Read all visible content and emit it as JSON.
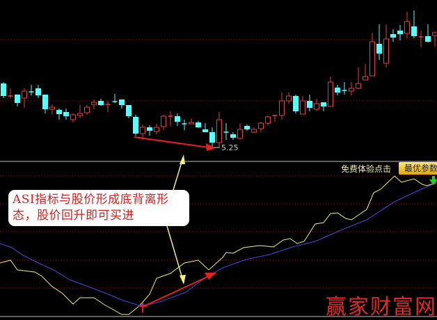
{
  "chart_data": [
    {
      "type": "candlestick",
      "title": "",
      "colors": {
        "up": "#e04040",
        "down": "#54ffff",
        "grid": "#8a1a1a"
      },
      "grid": true,
      "low_label": "5.25",
      "candles": [
        [
          6.17,
          5.99,
          6.19,
          5.96
        ],
        [
          5.99,
          5.99,
          6.1,
          5.96
        ],
        [
          6.01,
          5.89,
          6.01,
          5.84
        ],
        [
          5.96,
          6.06,
          6.1,
          5.82
        ],
        [
          6.05,
          6.04,
          6.15,
          6.0
        ],
        [
          6.1,
          6.0,
          6.15,
          5.96
        ],
        [
          6.01,
          5.8,
          6.01,
          5.74
        ],
        [
          5.8,
          5.83,
          5.87,
          5.72
        ],
        [
          5.79,
          5.73,
          5.81,
          5.65
        ],
        [
          5.76,
          5.7,
          5.81,
          5.65
        ],
        [
          5.65,
          5.72,
          5.74,
          5.61
        ],
        [
          5.71,
          5.74,
          5.86,
          5.67
        ],
        [
          5.75,
          5.83,
          5.86,
          5.72
        ],
        [
          5.87,
          5.9,
          5.94,
          5.8
        ],
        [
          5.92,
          5.86,
          5.95,
          5.85
        ],
        [
          5.87,
          5.87,
          5.92,
          5.76
        ],
        [
          5.91,
          5.9,
          6.02,
          5.89
        ],
        [
          5.94,
          5.86,
          5.94,
          5.81
        ],
        [
          5.86,
          5.7,
          5.86,
          5.67
        ],
        [
          5.69,
          5.45,
          5.72,
          5.42
        ],
        [
          5.45,
          5.54,
          5.58,
          5.36
        ],
        [
          5.54,
          5.49,
          5.57,
          5.42
        ],
        [
          5.48,
          5.54,
          5.59,
          5.44
        ],
        [
          5.55,
          5.7,
          5.72,
          5.5
        ],
        [
          5.7,
          5.7,
          5.77,
          5.55
        ],
        [
          5.7,
          5.62,
          5.74,
          5.56
        ],
        [
          5.59,
          5.58,
          5.65,
          5.5
        ],
        [
          5.59,
          5.61,
          5.67,
          5.59
        ],
        [
          5.61,
          5.54,
          5.63,
          5.53
        ],
        [
          5.51,
          5.47,
          5.6,
          5.47
        ],
        [
          5.47,
          5.32,
          5.54,
          5.25
        ],
        [
          5.32,
          5.65,
          5.76,
          5.25
        ],
        [
          5.47,
          5.46,
          5.6,
          5.36
        ],
        [
          5.44,
          5.39,
          5.47,
          5.36
        ],
        [
          5.38,
          5.51,
          5.6,
          5.36
        ],
        [
          5.56,
          5.51,
          5.58,
          5.49
        ],
        [
          5.47,
          5.51,
          5.54,
          5.46
        ],
        [
          5.52,
          5.6,
          5.62,
          5.47
        ],
        [
          5.6,
          5.69,
          5.71,
          5.57
        ],
        [
          5.71,
          5.71,
          5.72,
          5.62
        ],
        [
          5.71,
          5.92,
          6.04,
          5.65
        ],
        [
          5.92,
          5.99,
          6.04,
          5.88
        ],
        [
          5.99,
          5.77,
          6.01,
          5.74
        ],
        [
          5.73,
          5.92,
          5.99,
          5.73
        ],
        [
          5.92,
          5.82,
          6.01,
          5.77
        ],
        [
          5.8,
          5.88,
          5.95,
          5.77
        ],
        [
          5.9,
          5.84,
          5.9,
          5.77
        ],
        [
          5.84,
          6.19,
          6.27,
          5.84
        ],
        [
          6.11,
          6.04,
          6.15,
          6.0
        ],
        [
          6.07,
          6.06,
          6.19,
          6.01
        ],
        [
          6.06,
          6.1,
          6.19,
          6.0
        ],
        [
          6.1,
          6.17,
          6.4,
          6.09
        ],
        [
          6.22,
          6.27,
          6.45,
          6.22
        ],
        [
          6.28,
          6.77,
          6.9,
          6.28
        ],
        [
          6.74,
          6.6,
          7.02,
          6.51
        ],
        [
          6.46,
          6.81,
          7.02,
          6.4
        ],
        [
          6.88,
          6.83,
          6.95,
          6.77
        ],
        [
          6.93,
          6.88,
          7.01,
          6.79
        ],
        [
          6.89,
          7.06,
          7.2,
          6.82
        ],
        [
          6.99,
          6.85,
          7.22,
          6.82
        ],
        [
          6.84,
          6.84,
          6.93,
          6.69
        ],
        [
          6.85,
          6.77,
          7.02,
          6.76
        ],
        [
          6.86,
          6.9,
          6.92,
          6.7
        ]
      ]
    },
    {
      "type": "line",
      "title": "",
      "grid": true,
      "series": [
        {
          "color": "#f0f080",
          "points": [
            [
              -0.5,
              77
            ],
            [
              1,
              81
            ],
            [
              2,
              67
            ],
            [
              4.5,
              64
            ],
            [
              5.5,
              58
            ],
            [
              7,
              43
            ],
            [
              8.5,
              33
            ],
            [
              10,
              18
            ],
            [
              11,
              27
            ],
            [
              13,
              27
            ],
            [
              14.5,
              17
            ],
            [
              17,
              3
            ],
            [
              18,
              3
            ],
            [
              19.5,
              15
            ],
            [
              21,
              32
            ],
            [
              22,
              55
            ],
            [
              24,
              62
            ],
            [
              26,
              77
            ],
            [
              28,
              81
            ],
            [
              29.5,
              67
            ],
            [
              31.5,
              85
            ],
            [
              32,
              92
            ],
            [
              33,
              91
            ],
            [
              34.5,
              99
            ],
            [
              36.8,
              102
            ],
            [
              38.8,
              100
            ],
            [
              40.2,
              110
            ],
            [
              41.2,
              112
            ],
            [
              42.2,
              105
            ],
            [
              43.2,
              108
            ],
            [
              44.8,
              133
            ],
            [
              46,
              135
            ],
            [
              47,
              148
            ],
            [
              48,
              149
            ],
            [
              49.2,
              141
            ],
            [
              50,
              139
            ],
            [
              52.2,
              154
            ],
            [
              53.2,
              178
            ],
            [
              54.2,
              183
            ],
            [
              56.2,
              202
            ],
            [
              57.2,
              193
            ],
            [
              59,
              198
            ],
            [
              60.2,
              190
            ],
            [
              60.8,
              188
            ],
            [
              62.2,
              192
            ]
          ]
        },
        {
          "color": "#4848e0",
          "points": [
            [
              -0.5,
              105
            ],
            [
              1.2,
              99
            ],
            [
              2.8,
              88
            ],
            [
              5,
              77
            ],
            [
              7.2,
              67
            ],
            [
              9.5,
              53
            ],
            [
              12.2,
              43
            ],
            [
              14.8,
              33
            ],
            [
              17.2,
              23
            ],
            [
              19.5,
              16
            ],
            [
              20.8,
              17
            ],
            [
              22.8,
              22
            ],
            [
              26.2,
              35
            ],
            [
              28.5,
              52
            ],
            [
              31.5,
              70
            ],
            [
              34.8,
              82
            ],
            [
              38.2,
              89
            ],
            [
              41.5,
              100
            ],
            [
              44.8,
              108
            ],
            [
              48.2,
              123
            ],
            [
              52.2,
              139
            ],
            [
              56.2,
              165
            ],
            [
              59.8,
              182
            ],
            [
              62.2,
              192
            ]
          ]
        }
      ]
    }
  ],
  "annotation": {
    "line1": "ASI指标与股价形成底背离形",
    "line2": "态，股价回升即可买进"
  },
  "toolbar": {
    "free_trial": "免费体验点击",
    "best_params": "最优参数"
  },
  "watermark": "赢家财富网",
  "icons": {
    "buy_signal": "red-cross",
    "sell_signal": "green-down-arrow"
  }
}
